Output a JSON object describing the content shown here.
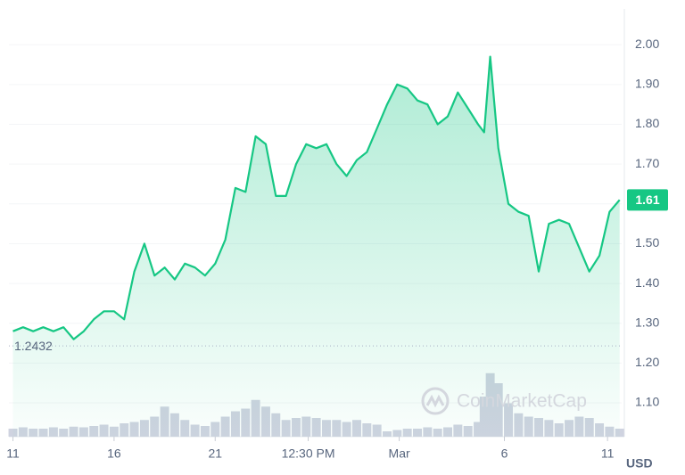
{
  "chart_data": {
    "type": "line",
    "x": [
      0,
      0.5,
      1,
      1.5,
      2,
      2.5,
      3,
      3.5,
      4,
      4.5,
      5,
      5.5,
      6,
      6.5,
      7,
      7.5,
      8,
      8.5,
      9,
      9.5,
      10,
      10.5,
      11,
      11.5,
      12,
      12.5,
      13,
      13.5,
      14,
      14.5,
      15,
      15.5,
      16,
      16.5,
      17,
      17.5,
      18,
      18.5,
      19,
      19.5,
      20,
      20.5,
      21,
      21.5,
      22,
      22.5,
      23,
      23.3,
      23.6,
      24,
      24.5,
      25,
      25.5,
      26,
      26.5,
      27,
      27.5,
      28,
      28.5,
      29,
      29.5,
      30
    ],
    "series": [
      {
        "color": "#16c784",
        "values": [
          1.28,
          1.29,
          1.28,
          1.29,
          1.28,
          1.29,
          1.26,
          1.28,
          1.31,
          1.33,
          1.33,
          1.31,
          1.43,
          1.5,
          1.42,
          1.44,
          1.41,
          1.45,
          1.44,
          1.42,
          1.45,
          1.51,
          1.64,
          1.63,
          1.77,
          1.75,
          1.62,
          1.62,
          1.7,
          1.75,
          1.74,
          1.75,
          1.7,
          1.67,
          1.71,
          1.73,
          1.79,
          1.85,
          1.9,
          1.89,
          1.86,
          1.85,
          1.8,
          1.82,
          1.88,
          1.84,
          1.8,
          1.78,
          1.97,
          1.74,
          1.6,
          1.58,
          1.57,
          1.43,
          1.55,
          1.56,
          1.55,
          1.49,
          1.43,
          1.47,
          1.58,
          1.61
        ]
      },
      {
        "color": "#cfd3e0",
        "values": [
          12,
          14,
          12,
          12,
          14,
          12,
          15,
          14,
          16,
          18,
          15,
          20,
          22,
          25,
          30,
          45,
          35,
          25,
          18,
          16,
          22,
          30,
          38,
          42,
          55,
          45,
          35,
          25,
          28,
          30,
          28,
          25,
          25,
          22,
          25,
          20,
          18,
          8,
          10,
          12,
          12,
          14,
          12,
          14,
          18,
          16,
          22,
          60,
          95,
          80,
          50,
          35,
          30,
          28,
          25,
          20,
          25,
          30,
          28,
          20,
          15,
          12
        ]
      }
    ],
    "xlim": [
      -0.2,
      30.1
    ],
    "xticks": [
      {
        "value": 0,
        "label": "11"
      },
      {
        "value": 5,
        "label": "16"
      },
      {
        "value": 10,
        "label": "21"
      },
      {
        "value": 14.6,
        "label": "12:30 PM"
      },
      {
        "value": 19.1,
        "label": "Mar"
      },
      {
        "value": 24.3,
        "label": "6"
      },
      {
        "value": 29.4,
        "label": "11"
      }
    ],
    "ylim": [
      1.015,
      2.09
    ],
    "yticks": [
      {
        "value": 1.1,
        "label": "1.10"
      },
      {
        "value": 1.2,
        "label": "1.20"
      },
      {
        "value": 1.3,
        "label": "1.30"
      },
      {
        "value": 1.4,
        "label": "1.40"
      },
      {
        "value": 1.5,
        "label": "1.50"
      },
      {
        "value": 1.6,
        "label": "1.60"
      },
      {
        "value": 1.7,
        "label": "1.70"
      },
      {
        "value": 1.8,
        "label": "1.80"
      },
      {
        "value": 1.9,
        "label": "1.90"
      },
      {
        "value": 2.0,
        "label": "2.00"
      }
    ],
    "vlim": [
      0,
      100
    ],
    "open_price": 1.2432,
    "last_price": 1.61,
    "currency": "USD",
    "watermark": "CoinMarketCap",
    "grid": true
  }
}
